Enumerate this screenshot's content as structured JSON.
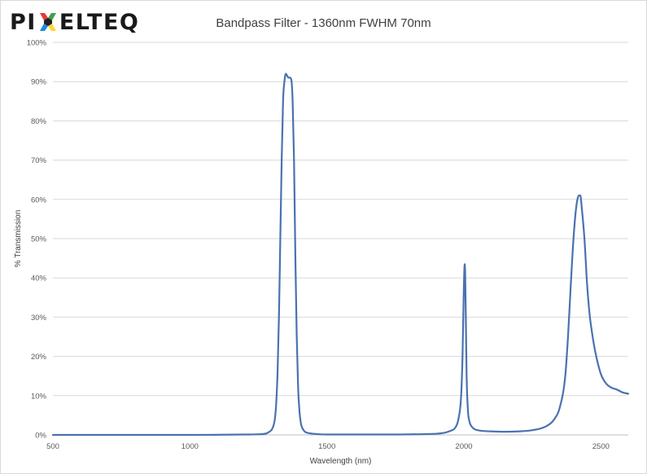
{
  "logo": {
    "prefix": "PI",
    "suffix": "ELTEQ",
    "mark": "colored-x-icon"
  },
  "chart_data": {
    "type": "line",
    "title": "Bandpass Filter - 1360nm FWHM 70nm",
    "xlabel": "Wavelength (nm)",
    "ylabel": "% Transmission",
    "xlim": [
      500,
      2600
    ],
    "ylim": [
      0,
      100
    ],
    "x_ticks": [
      500,
      1000,
      1500,
      2000,
      2500
    ],
    "y_ticks": [
      "0%",
      "10%",
      "20%",
      "30%",
      "40%",
      "50%",
      "60%",
      "70%",
      "80%",
      "90%",
      "100%"
    ],
    "grid": true,
    "line_color": "#4a72b0",
    "series": [
      {
        "x": [
          500,
          800,
          1000,
          1200,
          1260,
          1280,
          1290,
          1300,
          1310,
          1315,
          1320,
          1325,
          1330,
          1335,
          1340,
          1345,
          1350,
          1355,
          1360,
          1365,
          1370,
          1375,
          1380,
          1385,
          1390,
          1395,
          1400,
          1405,
          1410,
          1415,
          1420,
          1430,
          1450,
          1500,
          1700,
          1900,
          1950,
          1970,
          1980,
          1990,
          1995,
          2000,
          2003,
          2005,
          2008,
          2010,
          2015,
          2020,
          2030,
          2050,
          2100,
          2150,
          2200,
          2250,
          2300,
          2330,
          2350,
          2370,
          2380,
          2390,
          2400,
          2410,
          2420,
          2425,
          2430,
          2440,
          2450,
          2460,
          2470,
          2480,
          2500,
          2520,
          2540,
          2560,
          2580,
          2600
        ],
        "y": [
          0,
          0,
          0,
          0.1,
          0.2,
          0.4,
          0.8,
          1.5,
          4,
          8,
          16,
          30,
          50,
          70,
          85,
          90,
          92,
          91.5,
          91,
          91,
          90.5,
          85,
          70,
          45,
          25,
          12,
          6,
          3,
          1.8,
          1.2,
          0.8,
          0.5,
          0.3,
          0.1,
          0.1,
          0.3,
          1,
          2,
          4,
          10,
          20,
          38,
          43.5,
          40,
          25,
          15,
          6,
          3.5,
          2,
          1.2,
          0.9,
          0.8,
          0.9,
          1.2,
          2.2,
          4,
          7,
          15,
          25,
          38,
          50,
          58,
          61,
          61,
          58,
          50,
          38,
          30,
          25,
          21,
          15.5,
          13,
          12,
          11.5,
          10.8,
          10.5
        ]
      }
    ]
  }
}
